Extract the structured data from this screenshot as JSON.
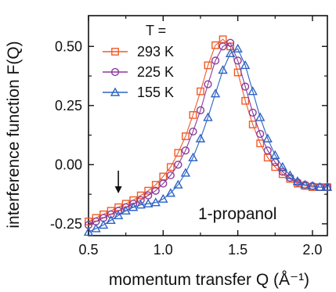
{
  "chart_data": {
    "type": "scatter",
    "title": "",
    "xlabel": "momentum transfer Q (Å⁻¹)",
    "ylabel": "interference function F(Q)",
    "xlim": [
      0.5,
      2.1
    ],
    "ylim": [
      -0.3,
      0.63
    ],
    "xticks": [
      0.5,
      1.0,
      1.5,
      2.0
    ],
    "xtick_labels": [
      "0.5",
      "1.0",
      "1.5",
      "2.0"
    ],
    "yticks": [
      -0.25,
      0.0,
      0.25,
      0.5
    ],
    "ytick_labels": [
      "-0.25",
      "0.00",
      "0.25",
      "0.50"
    ],
    "legend_title": "T =",
    "legend_position": "top-left",
    "annotation": "1-propanol",
    "arrow_at_x": 0.7,
    "grid": false,
    "series": [
      {
        "name": "293 K",
        "color": "#f05a28",
        "marker": "square",
        "x": [
          0.5,
          0.55,
          0.6,
          0.65,
          0.7,
          0.75,
          0.8,
          0.85,
          0.9,
          0.95,
          1.0,
          1.05,
          1.1,
          1.15,
          1.2,
          1.25,
          1.3,
          1.35,
          1.4,
          1.45,
          1.5,
          1.55,
          1.6,
          1.65,
          1.7,
          1.75,
          1.8,
          1.85,
          1.9,
          1.95,
          2.0,
          2.05,
          2.1
        ],
        "y": [
          -0.24,
          -0.225,
          -0.21,
          -0.195,
          -0.18,
          -0.165,
          -0.15,
          -0.13,
          -0.11,
          -0.085,
          -0.05,
          -0.01,
          0.05,
          0.12,
          0.21,
          0.31,
          0.42,
          0.505,
          0.53,
          0.5,
          0.39,
          0.27,
          0.17,
          0.09,
          0.03,
          -0.01,
          -0.04,
          -0.06,
          -0.08,
          -0.09,
          -0.095,
          -0.095,
          -0.095
        ]
      },
      {
        "name": "225 K",
        "color": "#8b3a9a",
        "marker": "circle",
        "x": [
          0.5,
          0.55,
          0.6,
          0.65,
          0.7,
          0.75,
          0.8,
          0.85,
          0.9,
          0.95,
          1.0,
          1.05,
          1.1,
          1.15,
          1.2,
          1.25,
          1.3,
          1.35,
          1.4,
          1.45,
          1.5,
          1.55,
          1.6,
          1.65,
          1.7,
          1.75,
          1.8,
          1.85,
          1.9,
          1.95,
          2.0,
          2.05,
          2.1
        ],
        "y": [
          -0.255,
          -0.24,
          -0.225,
          -0.21,
          -0.195,
          -0.18,
          -0.165,
          -0.15,
          -0.13,
          -0.11,
          -0.08,
          -0.045,
          0.0,
          0.06,
          0.14,
          0.23,
          0.34,
          0.44,
          0.5,
          0.515,
          0.44,
          0.33,
          0.22,
          0.13,
          0.06,
          0.01,
          -0.03,
          -0.055,
          -0.075,
          -0.085,
          -0.09,
          -0.095,
          -0.095
        ]
      },
      {
        "name": "155 K",
        "color": "#2d63c4",
        "marker": "triangle",
        "x": [
          0.5,
          0.55,
          0.6,
          0.65,
          0.7,
          0.75,
          0.8,
          0.85,
          0.9,
          0.95,
          1.0,
          1.05,
          1.1,
          1.15,
          1.2,
          1.25,
          1.3,
          1.35,
          1.4,
          1.45,
          1.5,
          1.55,
          1.6,
          1.65,
          1.7,
          1.75,
          1.8,
          1.85,
          1.9,
          1.95,
          2.0,
          2.05,
          2.1
        ],
        "y": [
          -0.285,
          -0.27,
          -0.255,
          -0.235,
          -0.215,
          -0.195,
          -0.18,
          -0.17,
          -0.165,
          -0.16,
          -0.145,
          -0.12,
          -0.085,
          -0.035,
          0.03,
          0.11,
          0.2,
          0.3,
          0.4,
          0.47,
          0.49,
          0.42,
          0.31,
          0.2,
          0.11,
          0.04,
          -0.01,
          -0.045,
          -0.07,
          -0.085,
          -0.09,
          -0.095,
          -0.095
        ]
      }
    ]
  }
}
